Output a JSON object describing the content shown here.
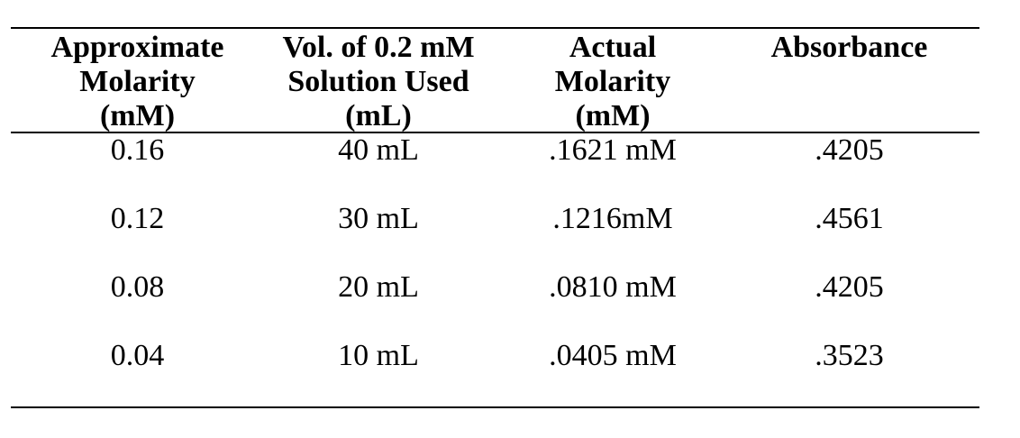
{
  "table": {
    "headers": [
      [
        "Approximate",
        "Molarity",
        "(mM)"
      ],
      [
        "Vol. of 0.2 mM",
        "Solution Used",
        "(mL)"
      ],
      [
        "Actual",
        "Molarity",
        "(mM)"
      ],
      [
        "Absorbance"
      ]
    ],
    "rows": [
      [
        "0.16",
        "40 mL",
        ".1621 mM",
        ".4205"
      ],
      [
        "0.12",
        "30 mL",
        ".1216mM",
        ".4561"
      ],
      [
        "0.08",
        "20 mL",
        ".0810 mM",
        ".4205"
      ],
      [
        "0.04",
        "10 mL",
        ".0405 mM",
        ".3523"
      ]
    ]
  }
}
